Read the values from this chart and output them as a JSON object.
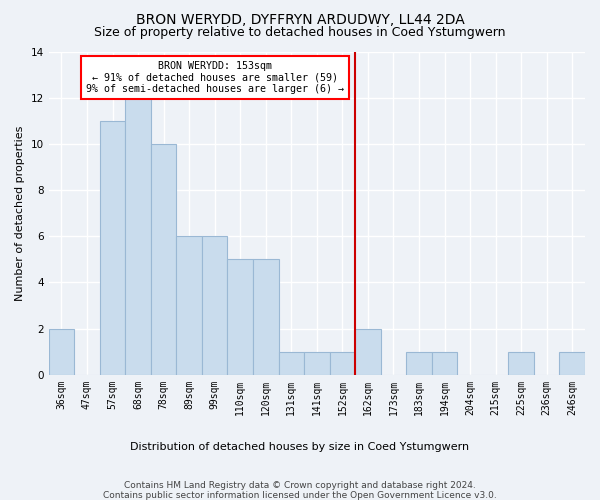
{
  "title": "BRON WERYDD, DYFFRYN ARDUDWY, LL44 2DA",
  "subtitle": "Size of property relative to detached houses in Coed Ystumgwern",
  "xlabel": "Distribution of detached houses by size in Coed Ystumgwern",
  "ylabel": "Number of detached properties",
  "footer1": "Contains HM Land Registry data © Crown copyright and database right 2024.",
  "footer2": "Contains public sector information licensed under the Open Government Licence v3.0.",
  "categories": [
    "36sqm",
    "47sqm",
    "57sqm",
    "68sqm",
    "78sqm",
    "89sqm",
    "99sqm",
    "110sqm",
    "120sqm",
    "131sqm",
    "141sqm",
    "152sqm",
    "162sqm",
    "173sqm",
    "183sqm",
    "194sqm",
    "204sqm",
    "215sqm",
    "225sqm",
    "236sqm",
    "246sqm"
  ],
  "values": [
    2,
    0,
    11,
    12,
    10,
    6,
    6,
    5,
    5,
    1,
    1,
    1,
    2,
    0,
    1,
    1,
    0,
    0,
    1,
    0,
    1
  ],
  "bar_color": "#c9dced",
  "bar_edge_color": "#9ab8d4",
  "vline_color": "#cc0000",
  "vline_x_index": 11.5,
  "annotation_text": "BRON WERYDD: 153sqm\n← 91% of detached houses are smaller (59)\n9% of semi-detached houses are larger (6) →",
  "ylim": [
    0,
    14
  ],
  "yticks": [
    0,
    2,
    4,
    6,
    8,
    10,
    12,
    14
  ],
  "bg_color": "#eef2f7",
  "grid_color": "#ffffff",
  "title_fontsize": 10,
  "subtitle_fontsize": 9,
  "axis_label_fontsize": 8,
  "tick_fontsize": 7,
  "footer_fontsize": 6.5
}
